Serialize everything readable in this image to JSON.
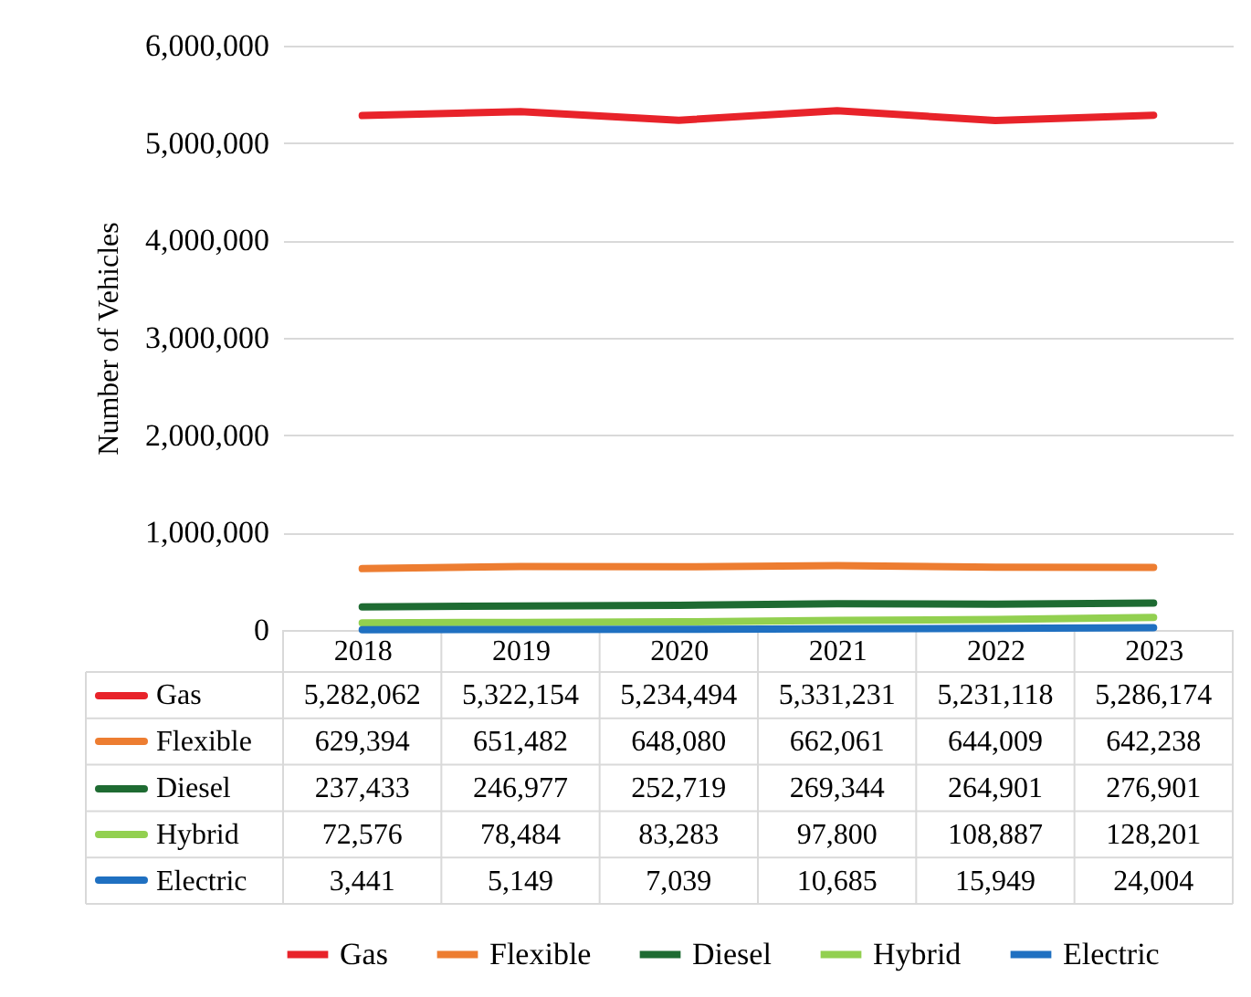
{
  "chart_data": {
    "type": "line",
    "ylabel": "Number of Vehicles",
    "categories": [
      "2018",
      "2019",
      "2020",
      "2021",
      "2022",
      "2023"
    ],
    "series": [
      {
        "name": "Gas",
        "color": "#e8232a",
        "values": [
          5282062,
          5322154,
          5234494,
          5331231,
          5231118,
          5286174
        ],
        "value_labels": [
          "5,282,062",
          "5,322,154",
          "5,234,494",
          "5,331,231",
          "5,231,118",
          "5,286,174"
        ]
      },
      {
        "name": "Flexible",
        "color": "#ed7d31",
        "values": [
          629394,
          651482,
          648080,
          662061,
          644009,
          642238
        ],
        "value_labels": [
          "629,394",
          "651,482",
          "648,080",
          "662,061",
          "644,009",
          "642,238"
        ]
      },
      {
        "name": "Diesel",
        "color": "#1e6b32",
        "values": [
          237433,
          246977,
          252719,
          269344,
          264901,
          276901
        ],
        "value_labels": [
          "237,433",
          "246,977",
          "252,719",
          "269,344",
          "264,901",
          "276,901"
        ]
      },
      {
        "name": "Hybrid",
        "color": "#92d050",
        "values": [
          72576,
          78484,
          83283,
          97800,
          108887,
          128201
        ],
        "value_labels": [
          "72,576",
          "78,484",
          "83,283",
          "97,800",
          "108,887",
          "128,201"
        ]
      },
      {
        "name": "Electric",
        "color": "#1f70c1",
        "values": [
          3441,
          5149,
          7039,
          10685,
          15949,
          24004
        ],
        "value_labels": [
          "3,441",
          "5,149",
          "7,039",
          "10,685",
          "15,949",
          "24,004"
        ]
      }
    ],
    "ylim": [
      0,
      6000000
    ],
    "yticks": [
      0,
      {
        "value": 1000000,
        "label": "1,000,000"
      },
      {
        "value": 2000000,
        "label": "2,000,000"
      },
      {
        "value": 3000000,
        "label": "3,000,000"
      },
      {
        "value": 4000000,
        "label": "4,000,000"
      },
      {
        "value": 5000000,
        "label": "5,000,000"
      },
      {
        "value": 6000000,
        "label": "6,000,000"
      }
    ],
    "grid": "y",
    "legend": "bottom",
    "marker": "none",
    "line_style": "solid"
  }
}
